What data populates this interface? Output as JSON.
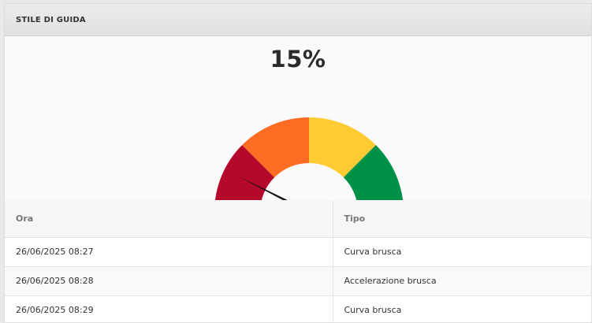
{
  "panel": {
    "title": "STILE DI GUIDA"
  },
  "gauge": {
    "value_label": "15%",
    "value_percent": 15,
    "segments": [
      {
        "name": "red",
        "color": "#b5092b"
      },
      {
        "name": "orange",
        "color": "#fd6c22"
      },
      {
        "name": "yellow",
        "color": "#ffcb33"
      },
      {
        "name": "green",
        "color": "#009148"
      }
    ],
    "needle_color": "#111111"
  },
  "table": {
    "headers": {
      "ora": "Ora",
      "tipo": "Tipo"
    },
    "rows": [
      {
        "ora": "26/06/2025 08:27",
        "tipo": "Curva brusca"
      },
      {
        "ora": "26/06/2025 08:28",
        "tipo": "Accelerazione brusca"
      },
      {
        "ora": "26/06/2025 08:29",
        "tipo": "Curva brusca"
      }
    ]
  }
}
